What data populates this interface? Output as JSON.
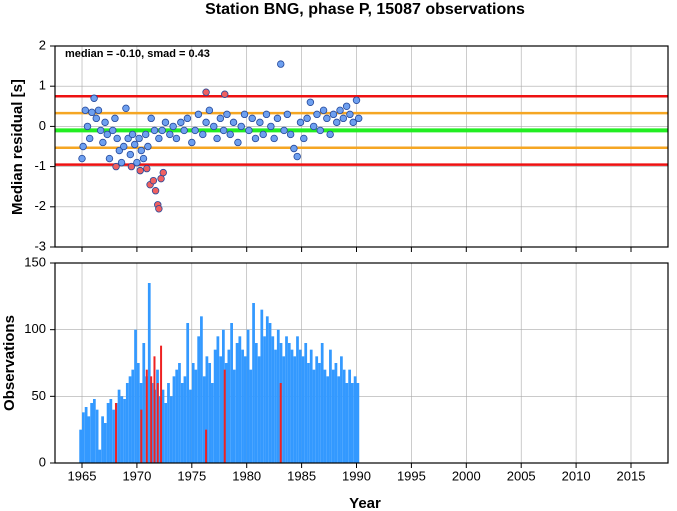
{
  "chart_data": [
    {
      "type": "scatter",
      "title": "Station BNG, phase P, 15087 observations",
      "y_label": "Median residual [s]",
      "annotation": "median = -0.10, smad = 0.43",
      "xlim": [
        1962.54,
        2018.37
      ],
      "xticks": [
        1965,
        1970,
        1975,
        1980,
        1985,
        1990,
        1995,
        2000,
        2005,
        2010,
        2015
      ],
      "ylim": [
        -3,
        2
      ],
      "yticks": [
        -3,
        -2,
        -1,
        0,
        1,
        2
      ],
      "grid": true,
      "reference_lines": [
        {
          "value": 0.75,
          "color": "#ee1111"
        },
        {
          "value": -0.95,
          "color": "#ee1111"
        },
        {
          "value": 0.33,
          "color": "#f5a623"
        },
        {
          "value": -0.53,
          "color": "#f5a623"
        },
        {
          "value": -0.1,
          "color": "#22ee22"
        }
      ],
      "series": [
        {
          "color": "#6ea0f0",
          "x": [
            1965.0,
            1965.1,
            1965.3,
            1965.5,
            1965.7,
            1965.9,
            1966.1,
            1966.3,
            1966.5,
            1966.7,
            1966.9,
            1967.1,
            1967.3,
            1967.5,
            1967.8,
            1968.0,
            1968.2,
            1968.4,
            1968.6,
            1968.8,
            1969.0,
            1969.2,
            1969.4,
            1969.6,
            1969.8,
            1970.0,
            1970.2,
            1970.4,
            1970.6,
            1970.8,
            1971.0,
            1971.3,
            1971.6,
            1972.0,
            1972.3,
            1972.6,
            1973.0,
            1973.3,
            1973.6,
            1974.0,
            1974.3,
            1974.6,
            1975.0,
            1975.3,
            1975.6,
            1976.0,
            1976.3,
            1976.6,
            1977.0,
            1977.3,
            1977.6,
            1977.9,
            1978.2,
            1978.5,
            1978.8,
            1979.2,
            1979.5,
            1979.8,
            1980.2,
            1980.5,
            1980.8,
            1981.2,
            1981.5,
            1981.8,
            1982.2,
            1982.5,
            1982.8,
            1983.1,
            1983.4,
            1983.7,
            1984.0,
            1984.3,
            1984.6,
            1984.9,
            1985.2,
            1985.5,
            1985.8,
            1986.1,
            1986.4,
            1986.7,
            1987.0,
            1987.3,
            1987.6,
            1987.9,
            1988.2,
            1988.5,
            1988.8,
            1989.1,
            1989.4,
            1989.7,
            1990.0,
            1990.2
          ],
          "values": [
            -0.8,
            -0.5,
            0.4,
            0.0,
            -0.3,
            0.35,
            0.7,
            0.2,
            0.4,
            -0.1,
            -0.4,
            0.1,
            -0.2,
            -0.8,
            -0.1,
            0.2,
            -0.3,
            -0.6,
            -0.9,
            -0.5,
            0.45,
            -0.3,
            -0.7,
            -0.2,
            -0.45,
            -0.9,
            -0.3,
            -0.6,
            -0.8,
            -0.2,
            -0.5,
            0.2,
            -0.1,
            -0.3,
            -0.1,
            0.1,
            -0.2,
            0.0,
            -0.3,
            0.1,
            -0.1,
            0.2,
            -0.4,
            -0.1,
            0.3,
            -0.2,
            0.1,
            0.4,
            0.0,
            -0.3,
            0.2,
            -0.1,
            0.3,
            -0.2,
            0.1,
            -0.4,
            0.0,
            0.3,
            -0.1,
            0.2,
            -0.3,
            0.1,
            -0.2,
            0.3,
            0.0,
            -0.3,
            0.2,
            1.55,
            -0.1,
            0.3,
            -0.2,
            -0.55,
            -0.75,
            0.1,
            -0.3,
            0.2,
            0.6,
            0.0,
            0.3,
            -0.1,
            0.4,
            0.2,
            -0.2,
            0.3,
            0.1,
            0.4,
            0.2,
            0.5,
            0.3,
            0.1,
            0.65,
            0.2
          ]
        },
        {
          "color": "#f06060",
          "x": [
            1968.1,
            1969.5,
            1970.3,
            1970.9,
            1971.2,
            1971.5,
            1971.7,
            1971.9,
            1972.0,
            1972.2,
            1972.4,
            1976.3,
            1978.0
          ],
          "values": [
            -1.0,
            -1.0,
            -1.1,
            -1.05,
            -1.45,
            -1.35,
            -1.6,
            -1.95,
            -2.05,
            -1.3,
            -1.15,
            0.85,
            0.8
          ]
        }
      ]
    },
    {
      "type": "histogram",
      "x_label": "Year",
      "y_label": "Observations",
      "xlim": [
        1962.54,
        2018.37
      ],
      "xticks": [
        1965,
        1970,
        1975,
        1980,
        1985,
        1990,
        1995,
        2000,
        2005,
        2010,
        2015
      ],
      "ylim": [
        0,
        150
      ],
      "yticks": [
        0,
        50,
        100,
        150
      ],
      "grid": true,
      "bins": [
        1964.75,
        1965,
        1965.25,
        1965.5,
        1965.75,
        1966,
        1966.25,
        1966.5,
        1966.75,
        1967,
        1967.25,
        1967.5,
        1967.75,
        1968,
        1968.25,
        1968.5,
        1968.75,
        1969,
        1969.25,
        1969.5,
        1969.75,
        1970,
        1970.25,
        1970.5,
        1970.75,
        1971,
        1971.25,
        1971.5,
        1971.75,
        1972,
        1972.25,
        1972.5,
        1972.75,
        1973,
        1973.25,
        1973.5,
        1973.75,
        1974,
        1974.25,
        1974.5,
        1974.75,
        1975,
        1975.25,
        1975.5,
        1975.75,
        1976,
        1976.25,
        1976.5,
        1976.75,
        1977,
        1977.25,
        1977.5,
        1977.75,
        1978,
        1978.25,
        1978.5,
        1978.75,
        1979,
        1979.25,
        1979.5,
        1979.75,
        1980,
        1980.25,
        1980.5,
        1980.75,
        1981,
        1981.25,
        1981.5,
        1981.75,
        1982,
        1982.25,
        1982.5,
        1982.75,
        1983,
        1983.25,
        1983.5,
        1983.75,
        1984,
        1984.25,
        1984.5,
        1984.75,
        1985,
        1985.25,
        1985.5,
        1985.75,
        1986,
        1986.25,
        1986.5,
        1986.75,
        1987,
        1987.25,
        1987.5,
        1987.75,
        1988,
        1988.25,
        1988.5,
        1988.75,
        1989,
        1989.25,
        1989.5,
        1989.75,
        1990,
        1990.25
      ],
      "series": [
        {
          "color": "#3399ff",
          "values": [
            25,
            38,
            42,
            35,
            45,
            48,
            40,
            10,
            35,
            30,
            45,
            48,
            40,
            45,
            55,
            50,
            48,
            60,
            65,
            70,
            100,
            75,
            60,
            90,
            65,
            135,
            60,
            55,
            70,
            50,
            55,
            45,
            60,
            50,
            65,
            70,
            75,
            60,
            65,
            105,
            55,
            75,
            70,
            95,
            110,
            65,
            80,
            75,
            60,
            85,
            95,
            80,
            100,
            75,
            85,
            105,
            70,
            90,
            95,
            85,
            80,
            100,
            70,
            120,
            90,
            80,
            115,
            95,
            110,
            105,
            95,
            85,
            100,
            90,
            80,
            95,
            90,
            85,
            80,
            95,
            85,
            80,
            90,
            75,
            85,
            70,
            80,
            75,
            90,
            70,
            65,
            85,
            70,
            75,
            65,
            80,
            70,
            60,
            70,
            60,
            65,
            60
          ]
        },
        {
          "color": "#ee2222",
          "x": [
            1968.1,
            1970.4,
            1970.9,
            1971.3,
            1971.6,
            1971.9,
            1972.2,
            1976.3,
            1978.0,
            1983.1
          ],
          "values": [
            45,
            40,
            70,
            65,
            80,
            60,
            88,
            25,
            70,
            60
          ]
        }
      ]
    }
  ]
}
